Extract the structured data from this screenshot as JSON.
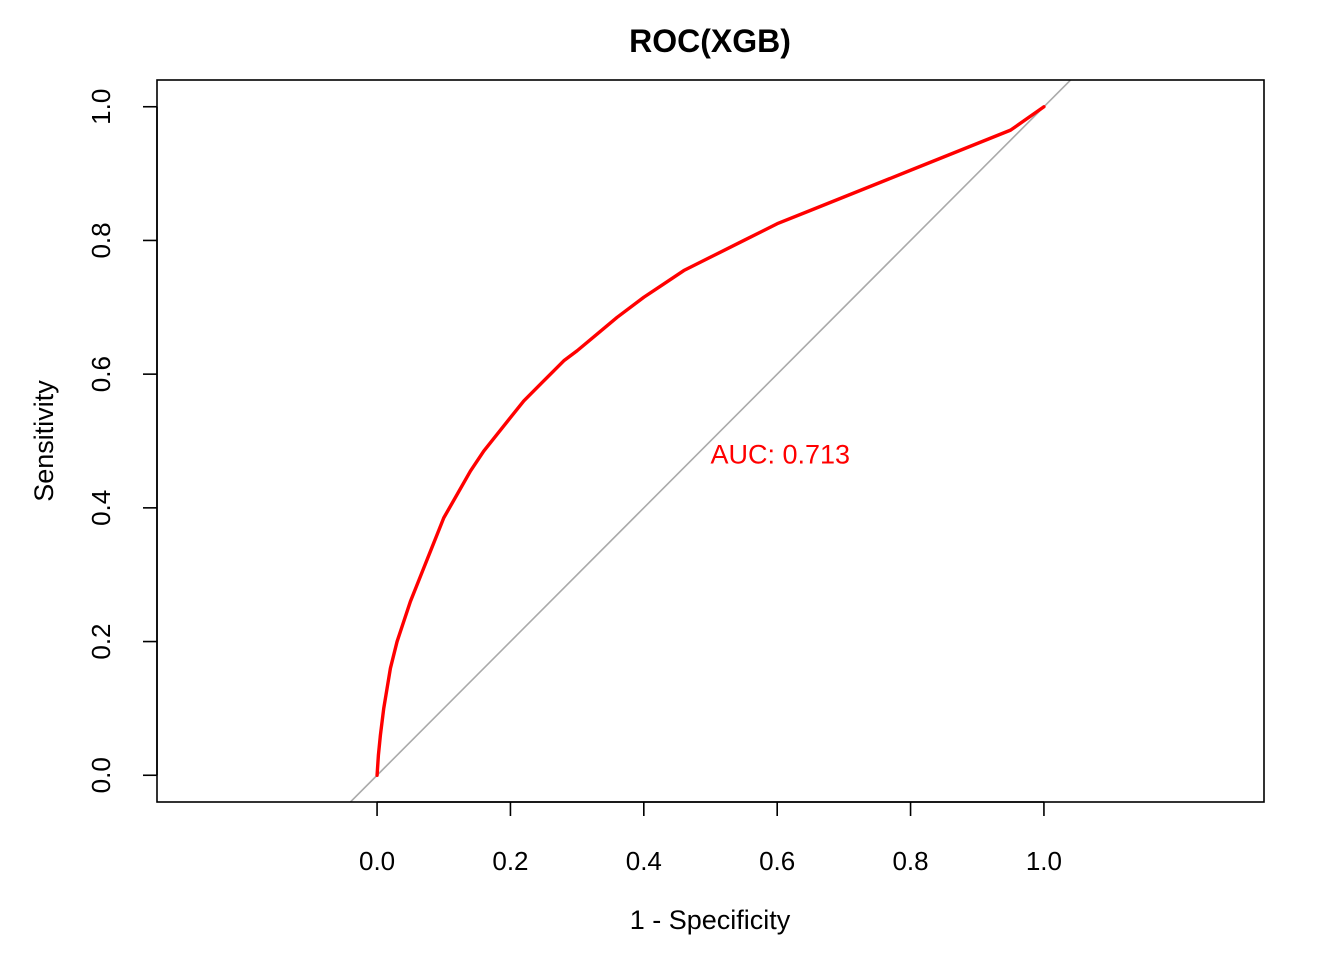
{
  "chart_data": {
    "type": "line",
    "title": "ROC(XGB)",
    "xlabel": "1 - Specificity",
    "ylabel": "Sensitivity",
    "xlim": [
      -0.33,
      1.33
    ],
    "ylim": [
      -0.04,
      1.04
    ],
    "x_ticks": [
      "0.0",
      "0.2",
      "0.4",
      "0.6",
      "0.8",
      "1.0"
    ],
    "y_ticks": [
      "0.0",
      "0.2",
      "0.4",
      "0.6",
      "0.8",
      "1.0"
    ],
    "grid": false,
    "legend": "none",
    "annotation": {
      "text": "AUC: 0.713",
      "x": 0.5,
      "y": 0.48,
      "color": "#ff0000"
    },
    "reference_line": {
      "from": [
        0,
        0
      ],
      "to": [
        1,
        1
      ],
      "color": "#aaaaaa"
    },
    "series": [
      {
        "color": "#ff0000",
        "x": [
          0,
          0.002,
          0.005,
          0.01,
          0.015,
          0.02,
          0.03,
          0.04,
          0.05,
          0.06,
          0.07,
          0.08,
          0.09,
          0.1,
          0.12,
          0.14,
          0.16,
          0.18,
          0.2,
          0.22,
          0.25,
          0.28,
          0.3,
          0.33,
          0.36,
          0.4,
          0.43,
          0.46,
          0.5,
          0.55,
          0.6,
          0.65,
          0.7,
          0.75,
          0.8,
          0.85,
          0.9,
          0.95,
          1.0
        ],
        "y": [
          0,
          0.03,
          0.06,
          0.1,
          0.13,
          0.16,
          0.2,
          0.23,
          0.26,
          0.285,
          0.31,
          0.335,
          0.36,
          0.385,
          0.42,
          0.455,
          0.485,
          0.51,
          0.535,
          0.56,
          0.59,
          0.62,
          0.635,
          0.66,
          0.685,
          0.715,
          0.735,
          0.755,
          0.775,
          0.8,
          0.825,
          0.845,
          0.865,
          0.885,
          0.905,
          0.925,
          0.945,
          0.965,
          1.0
        ]
      }
    ]
  }
}
